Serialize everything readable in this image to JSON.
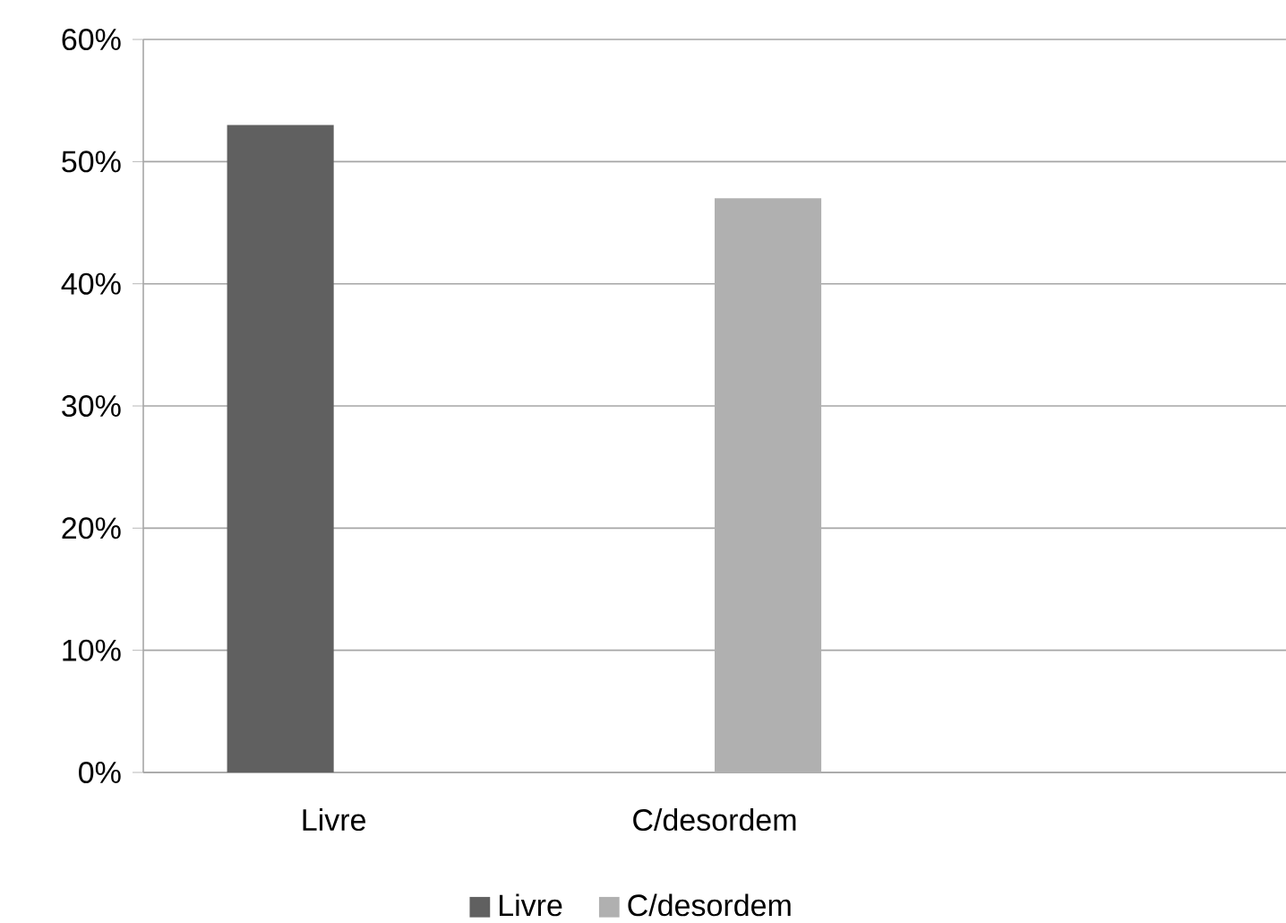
{
  "chart_data": {
    "type": "bar",
    "categories": [
      "Livre",
      "C/desordem",
      null
    ],
    "series": [
      {
        "name": "Livre",
        "color": "#606060",
        "values": [
          53,
          null,
          null
        ]
      },
      {
        "name": "C/desordem",
        "color": "#b0b0b0",
        "values": [
          null,
          47,
          null
        ]
      }
    ],
    "ylim": [
      0,
      60
    ],
    "yticks": [
      {
        "value": 0,
        "label": "0%"
      },
      {
        "value": 10,
        "label": "10%"
      },
      {
        "value": 20,
        "label": "20%"
      },
      {
        "value": 30,
        "label": "30%"
      },
      {
        "value": 40,
        "label": "40%"
      },
      {
        "value": 50,
        "label": "50%"
      },
      {
        "value": 60,
        "label": "60%"
      }
    ],
    "grid": "y",
    "legend": "bottom"
  }
}
